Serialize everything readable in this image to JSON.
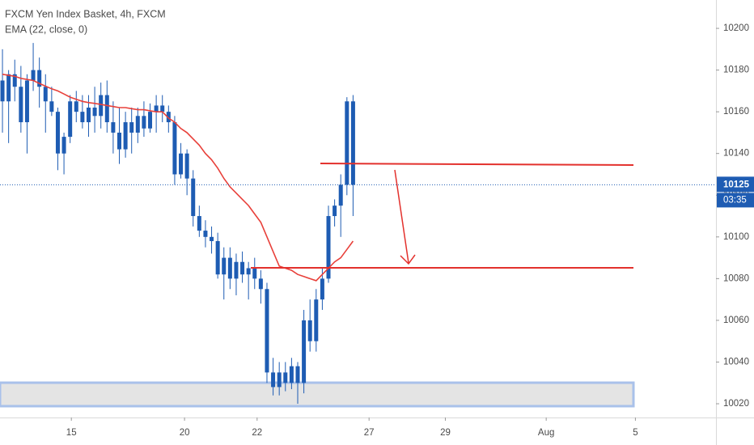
{
  "chart_data": {
    "type": "candlestick",
    "title": "FXCM Yen Index Basket, 4h, FXCM",
    "subtitle": "EMA (22, close, 0)",
    "color": "#1e5cb3",
    "open": [
      10175,
      10165,
      10178,
      10172,
      10155,
      10175,
      10180,
      10172,
      10165,
      10160,
      10140,
      10148,
      10165,
      10160,
      10155,
      10162,
      10158,
      10168,
      10155,
      10150,
      10142,
      10155,
      10150,
      10158,
      10152,
      10160,
      10163,
      10160,
      10155,
      10130,
      10140,
      10128,
      10110,
      10103,
      10100,
      10098,
      10082,
      10090,
      10080,
      10088,
      10082,
      10085,
      10080,
      10075,
      10035,
      10028,
      10035,
      10030,
      10038,
      10030,
      10060,
      10050,
      10070,
      10080,
      10110,
      10115,
      10125,
      10165
    ],
    "high": [
      10190,
      10180,
      10185,
      10182,
      10178,
      10193,
      10186,
      10178,
      10172,
      10162,
      10150,
      10168,
      10170,
      10168,
      10168,
      10172,
      10174,
      10175,
      10165,
      10162,
      10160,
      10162,
      10162,
      10165,
      10164,
      10168,
      10168,
      10163,
      10158,
      10145,
      10142,
      10132,
      10115,
      10108,
      10105,
      10102,
      10095,
      10095,
      10092,
      10093,
      10088,
      10090,
      10084,
      10078,
      10042,
      10040,
      10040,
      10042,
      10040,
      10065,
      10070,
      10075,
      10085,
      10115,
      10118,
      10130,
      10167,
      10168
    ],
    "low": [
      10150,
      10145,
      10165,
      10150,
      10140,
      10170,
      10162,
      10150,
      10158,
      10132,
      10130,
      10145,
      10155,
      10152,
      10148,
      10150,
      10152,
      10150,
      10140,
      10135,
      10138,
      10140,
      10145,
      10148,
      10150,
      10150,
      10155,
      10150,
      10125,
      10128,
      10120,
      10105,
      10100,
      10095,
      10092,
      10080,
      10070,
      10075,
      10072,
      10078,
      10070,
      10075,
      10068,
      10030,
      10024,
      10024,
      10026,
      10027,
      10020,
      10025,
      10045,
      10045,
      10065,
      10078,
      10105,
      10100,
      10120,
      10110
    ],
    "close": [
      10165,
      10178,
      10172,
      10155,
      10175,
      10180,
      10172,
      10165,
      10160,
      10140,
      10148,
      10165,
      10160,
      10155,
      10162,
      10158,
      10168,
      10155,
      10150,
      10142,
      10155,
      10150,
      10158,
      10152,
      10160,
      10163,
      10160,
      10155,
      10130,
      10140,
      10128,
      10110,
      10103,
      10100,
      10098,
      10082,
      10090,
      10080,
      10088,
      10082,
      10085,
      10080,
      10075,
      10035,
      10028,
      10035,
      10030,
      10038,
      10030,
      10060,
      10050,
      10070,
      10080,
      10110,
      10115,
      10125,
      10165,
      10125
    ],
    "ema": {
      "color": "#e8403a",
      "values": [
        10178,
        10177.5,
        10177,
        10176,
        10175.5,
        10175,
        10173.6,
        10172.3,
        10171,
        10170,
        10168.5,
        10167,
        10166,
        10165,
        10164.4,
        10164,
        10163.5,
        10163,
        10162.5,
        10162,
        10162,
        10161.5,
        10161,
        10161,
        10160.5,
        10160,
        10160,
        10157,
        10155,
        10152,
        10150,
        10147,
        10144,
        10140,
        10137,
        10133,
        10128,
        10124,
        10121,
        10118,
        10115,
        10111,
        10107,
        10100,
        10093,
        10086,
        10085,
        10084,
        10082,
        10081,
        10080,
        10079,
        10082,
        10085,
        10088,
        10090,
        10094,
        10098
      ]
    },
    "last_price": 10125,
    "countdown": "03:35",
    "ylim": [
      10013.8,
      10213.6
    ],
    "yticks": [
      10020,
      10040,
      10060,
      10080,
      10100,
      10120,
      10140,
      10160,
      10180,
      10200
    ],
    "xlim": [
      -0.4,
      116
    ],
    "xticks": [
      {
        "value": 11.2,
        "label": "15"
      },
      {
        "value": 29.6,
        "label": "20"
      },
      {
        "value": 41.4,
        "label": "22"
      },
      {
        "value": 59.6,
        "label": "27"
      },
      {
        "value": 72,
        "label": "29"
      },
      {
        "value": 88.4,
        "label": "Aug"
      },
      {
        "value": 102.9,
        "label": "5"
      }
    ]
  }
}
